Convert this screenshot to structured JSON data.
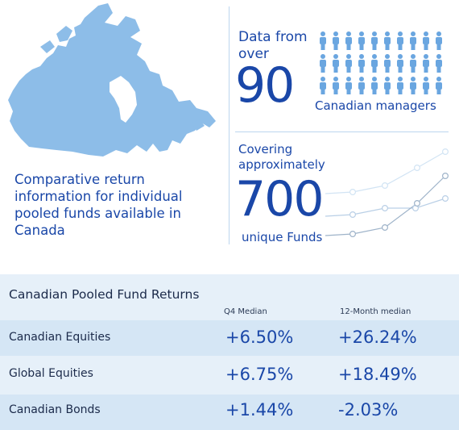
{
  "map": {
    "caption": "Comparative return information for individual pooled funds available in Canada",
    "fill_color": "#8dbde8"
  },
  "stat_managers": {
    "label": "Data from over",
    "number": "90",
    "sublabel": "Canadian managers",
    "icon": "person-icon",
    "icon_color": "#6aa6e0"
  },
  "stat_funds": {
    "label": "Covering approximately",
    "number": "700",
    "sublabel": "unique Funds"
  },
  "table": {
    "title": "Canadian Pooled Fund Returns",
    "columns": [
      "Q4 Median",
      "12-Month median"
    ],
    "rows": [
      {
        "label": "Canadian Equities",
        "q4": "+6.50%",
        "twelve_month": "+26.24%"
      },
      {
        "label": "Global Equities",
        "q4": "+6.75%",
        "twelve_month": "+18.49%"
      },
      {
        "label": "Canadian Bonds",
        "q4": "+1.44%",
        "twelve_month": "-2.03%"
      }
    ]
  },
  "colors": {
    "primary_text": "#1a47a8",
    "panel_bg": "#e6f0f9",
    "row_band": "#d5e6f5"
  }
}
